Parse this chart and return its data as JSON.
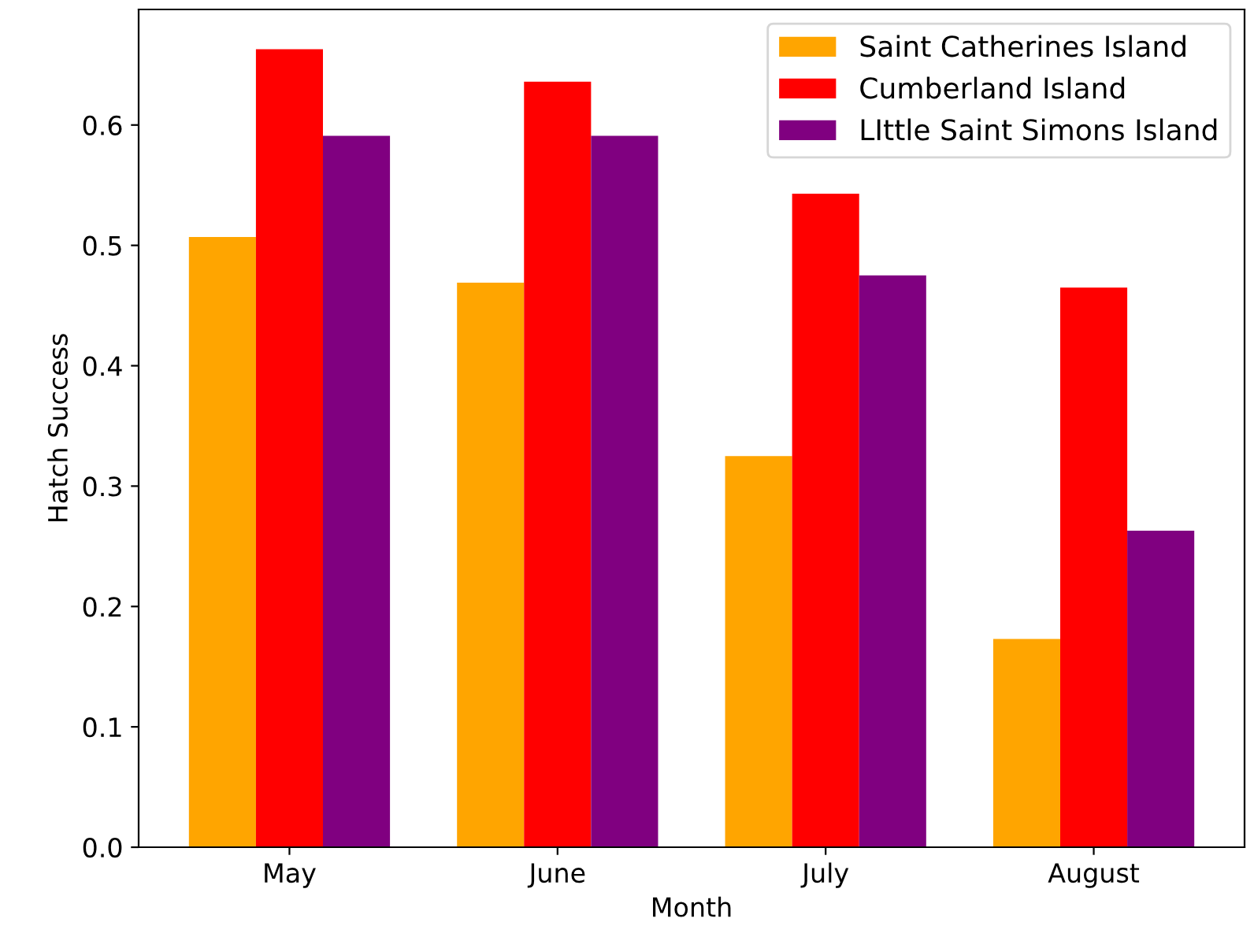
{
  "chart_data": {
    "type": "bar",
    "xlabel": "Month",
    "ylabel": "Hatch Success",
    "categories": [
      "May",
      "June",
      "July",
      "August"
    ],
    "series": [
      {
        "name": "Saint Catherines Island",
        "color": "#ffa500",
        "values": [
          0.507,
          0.469,
          0.325,
          0.173
        ]
      },
      {
        "name": "Cumberland Island",
        "color": "#ff0000",
        "values": [
          0.663,
          0.636,
          0.543,
          0.465
        ]
      },
      {
        "name": "LIttle Saint Simons Island",
        "color": "#800080",
        "values": [
          0.591,
          0.591,
          0.475,
          0.263
        ]
      }
    ],
    "ylim": [
      0,
      0.696
    ],
    "yticks": [
      {
        "value": 0,
        "label": "0.0"
      },
      0.1,
      0.2,
      0.3,
      0.4,
      0.5,
      0.6
    ],
    "legend": "top right",
    "grid": false
  }
}
